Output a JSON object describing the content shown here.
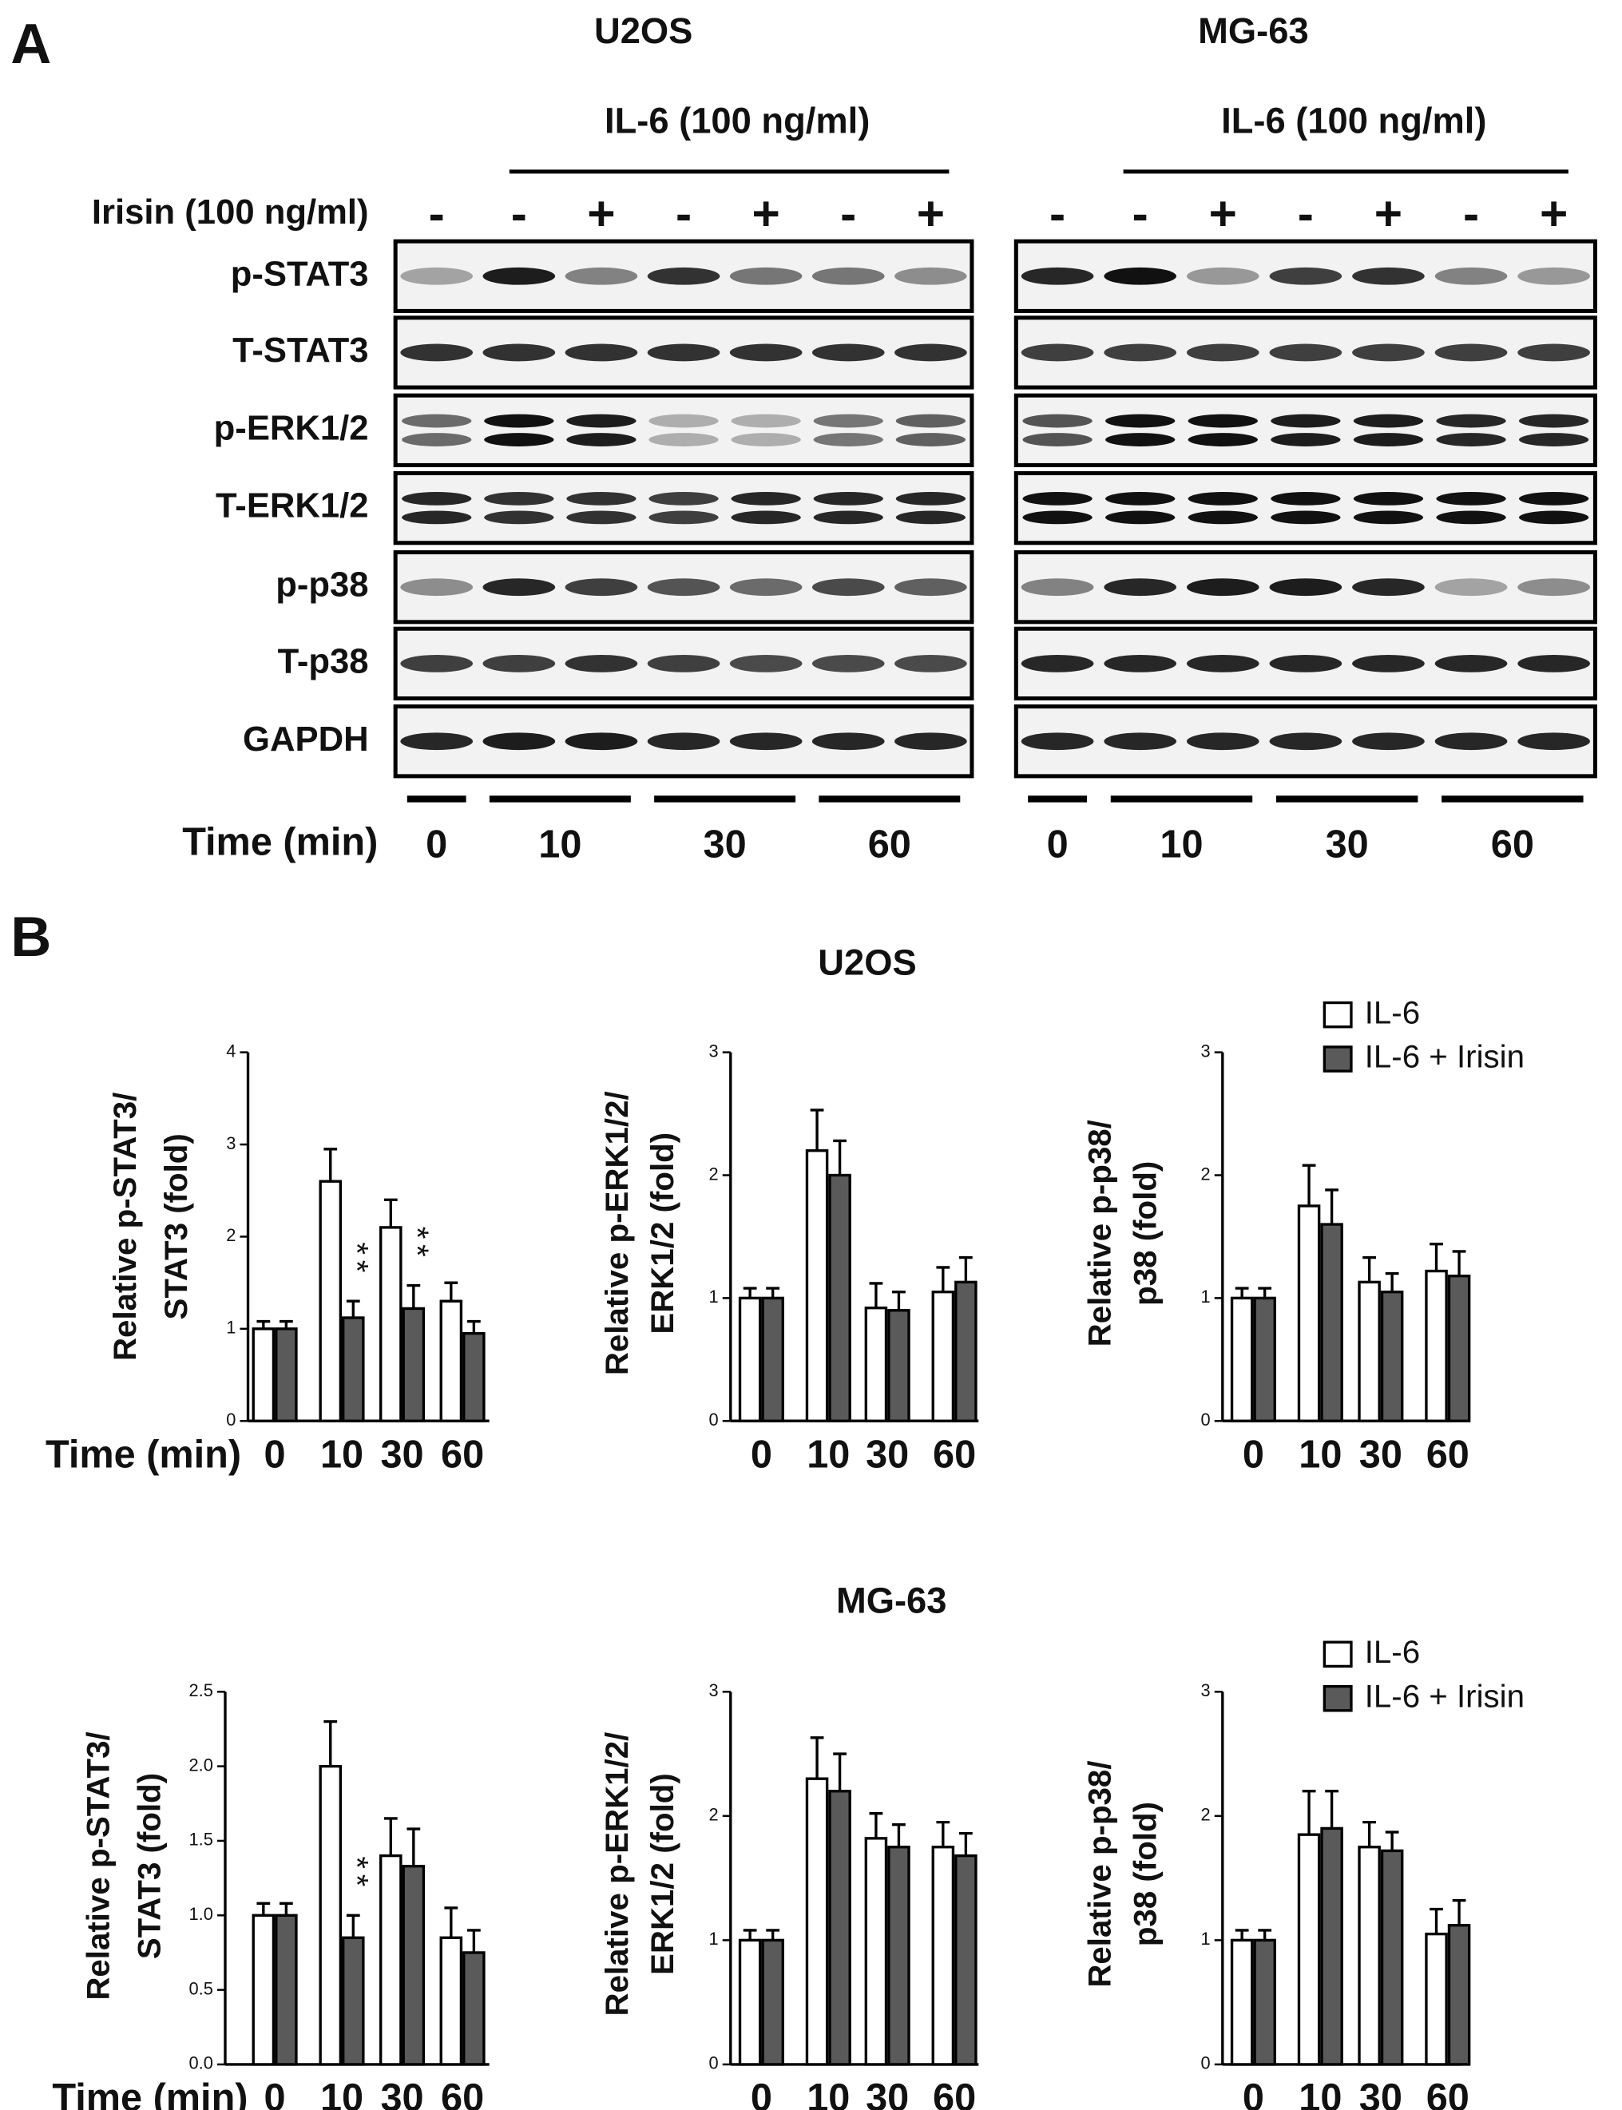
{
  "panel_a": {
    "label": "A",
    "irisin_label": "Irisin (100 ng/ml)",
    "time_label": "Time (min)",
    "proteins": [
      "p-STAT3",
      "T-STAT3",
      "p-ERK1/2",
      "T-ERK1/2",
      "p-p38",
      "T-p38",
      "GAPDH"
    ],
    "cell_lines": [
      {
        "name": "U2OS",
        "treatment": "IL-6 (100 ng/ml)",
        "irisin": [
          "-",
          "-",
          "+",
          "-",
          "+",
          "-",
          "+"
        ],
        "times": [
          "0",
          "10",
          "30",
          "60"
        ]
      },
      {
        "name": "MG-63",
        "treatment": "IL-6 (100 ng/ml)",
        "irisin": [
          "-",
          "-",
          "+",
          "-",
          "+",
          "-",
          "+"
        ],
        "times": [
          "0",
          "10",
          "30",
          "60"
        ]
      }
    ]
  },
  "panel_b": {
    "label": "B",
    "group_titles": [
      "U2OS",
      "MG-63"
    ]
  },
  "chart_data": [
    {
      "type": "bar",
      "ylabel": [
        "Relative p-STAT3/",
        "STAT3 (fold)"
      ],
      "xlabel": "Time (min)",
      "categories": [
        "0",
        "10",
        "30",
        "60"
      ],
      "ylim": [
        0,
        4
      ],
      "yticks": [
        0,
        1,
        2,
        3,
        4
      ],
      "series": [
        {
          "color": "#ffffff",
          "values": [
            1.0,
            2.6,
            2.1,
            1.3
          ],
          "errors": [
            0.08,
            0.35,
            0.3,
            0.2
          ]
        },
        {
          "color": "#5a5a5a",
          "values": [
            1.0,
            1.12,
            1.22,
            0.95
          ],
          "errors": [
            0.08,
            0.18,
            0.25,
            0.13
          ],
          "annotations": [
            null,
            "**",
            "**",
            null
          ]
        }
      ]
    },
    {
      "type": "bar",
      "ylabel": [
        "Relative p-ERK1/2/",
        "ERK1/2 (fold)"
      ],
      "categories": [
        "0",
        "10",
        "30",
        "60"
      ],
      "ylim": [
        0,
        3
      ],
      "yticks": [
        0,
        1,
        2,
        3
      ],
      "series": [
        {
          "color": "#ffffff",
          "values": [
            1.0,
            2.2,
            0.92,
            1.05
          ],
          "errors": [
            0.08,
            0.33,
            0.2,
            0.2
          ]
        },
        {
          "color": "#5a5a5a",
          "values": [
            1.0,
            2.0,
            0.9,
            1.13
          ],
          "errors": [
            0.08,
            0.28,
            0.15,
            0.2
          ]
        }
      ]
    },
    {
      "type": "bar",
      "ylabel": [
        "Relative p-p38/",
        "p38 (fold)"
      ],
      "legend": "upper right",
      "categories": [
        "0",
        "10",
        "30",
        "60"
      ],
      "ylim": [
        0,
        3
      ],
      "yticks": [
        0,
        1,
        2,
        3
      ],
      "series": [
        {
          "name": "IL-6",
          "color": "#ffffff",
          "values": [
            1.0,
            1.75,
            1.13,
            1.22
          ],
          "errors": [
            0.08,
            0.33,
            0.2,
            0.22
          ]
        },
        {
          "name": "IL-6 + Irisin",
          "color": "#5a5a5a",
          "values": [
            1.0,
            1.6,
            1.05,
            1.18
          ],
          "errors": [
            0.08,
            0.28,
            0.15,
            0.2
          ]
        }
      ]
    },
    {
      "type": "bar",
      "ylabel": [
        "Relative p-STAT3/",
        "STAT3 (fold)"
      ],
      "xlabel": "Time (min)",
      "categories": [
        "0",
        "10",
        "30",
        "60"
      ],
      "ylim": [
        0,
        2.5
      ],
      "yticks": [
        {
          "value": 0,
          "label": "0.0"
        },
        0.5,
        {
          "value": 1,
          "label": "1.0"
        },
        1.5,
        {
          "value": 2,
          "label": "2.0"
        },
        2.5
      ],
      "series": [
        {
          "color": "#ffffff",
          "values": [
            1.0,
            2.0,
            1.4,
            0.85
          ],
          "errors": [
            0.08,
            0.3,
            0.25,
            0.2
          ]
        },
        {
          "color": "#5a5a5a",
          "values": [
            1.0,
            0.85,
            1.33,
            0.75
          ],
          "errors": [
            0.08,
            0.15,
            0.25,
            0.15
          ],
          "annotations": [
            null,
            "**",
            null,
            null
          ]
        }
      ]
    },
    {
      "type": "bar",
      "ylabel": [
        "Relative p-ERK1/2/",
        "ERK1/2 (fold)"
      ],
      "categories": [
        "0",
        "10",
        "30",
        "60"
      ],
      "ylim": [
        0,
        3
      ],
      "yticks": [
        0,
        1,
        2,
        3
      ],
      "series": [
        {
          "color": "#ffffff",
          "values": [
            1.0,
            2.3,
            1.82,
            1.75
          ],
          "errors": [
            0.08,
            0.33,
            0.2,
            0.2
          ]
        },
        {
          "color": "#5a5a5a",
          "values": [
            1.0,
            2.2,
            1.75,
            1.68
          ],
          "errors": [
            0.08,
            0.3,
            0.18,
            0.18
          ]
        }
      ]
    },
    {
      "type": "bar",
      "ylabel": [
        "Relative p-p38/",
        "p38 (fold)"
      ],
      "legend": "upper right",
      "categories": [
        "0",
        "10",
        "30",
        "60"
      ],
      "ylim": [
        0,
        3
      ],
      "yticks": [
        0,
        1,
        2,
        3
      ],
      "series": [
        {
          "name": "IL-6",
          "color": "#ffffff",
          "values": [
            1.0,
            1.85,
            1.75,
            1.05
          ],
          "errors": [
            0.08,
            0.35,
            0.2,
            0.2
          ]
        },
        {
          "name": "IL-6 + Irisin",
          "color": "#5a5a5a",
          "values": [
            1.0,
            1.9,
            1.72,
            1.12
          ],
          "errors": [
            0.08,
            0.3,
            0.15,
            0.2
          ]
        }
      ]
    }
  ]
}
